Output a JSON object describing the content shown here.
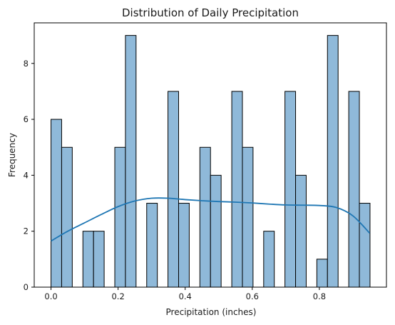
{
  "chart_data": {
    "type": "bar",
    "title": "Distribution of Daily Precipitation",
    "xlabel": "Precipitation (inches)",
    "ylabel": "Frequency",
    "xlim": [
      -0.05,
      1.0
    ],
    "ylim": [
      0,
      9.45
    ],
    "xticks": [
      0.0,
      0.2,
      0.4,
      0.6,
      0.8
    ],
    "xtick_labels": [
      "0.0",
      "0.2",
      "0.4",
      "0.6",
      "0.8"
    ],
    "yticks": [
      0,
      2,
      4,
      6,
      8
    ],
    "ytick_labels": [
      "0",
      "2",
      "4",
      "6",
      "8"
    ],
    "bin_start": 0.0,
    "bin_width": 0.0317,
    "counts": [
      6,
      5,
      0,
      2,
      2,
      0,
      5,
      9,
      0,
      3,
      0,
      7,
      3,
      0,
      5,
      4,
      0,
      7,
      5,
      0,
      2,
      0,
      7,
      4,
      0,
      1,
      9,
      0,
      7,
      3
    ],
    "kde": {
      "x": [
        0.0,
        0.05,
        0.1,
        0.15,
        0.2,
        0.25,
        0.3,
        0.35,
        0.4,
        0.45,
        0.5,
        0.55,
        0.6,
        0.65,
        0.7,
        0.75,
        0.8,
        0.85,
        0.9,
        0.95
      ],
      "y": [
        1.65,
        2.0,
        2.3,
        2.6,
        2.88,
        3.08,
        3.18,
        3.18,
        3.13,
        3.09,
        3.06,
        3.04,
        3.01,
        2.97,
        2.94,
        2.93,
        2.92,
        2.85,
        2.55,
        1.93
      ]
    },
    "grid": false,
    "bar_color": "#8fb9d9",
    "bar_edge_color": "#000000",
    "kde_color": "#1f77b4"
  }
}
